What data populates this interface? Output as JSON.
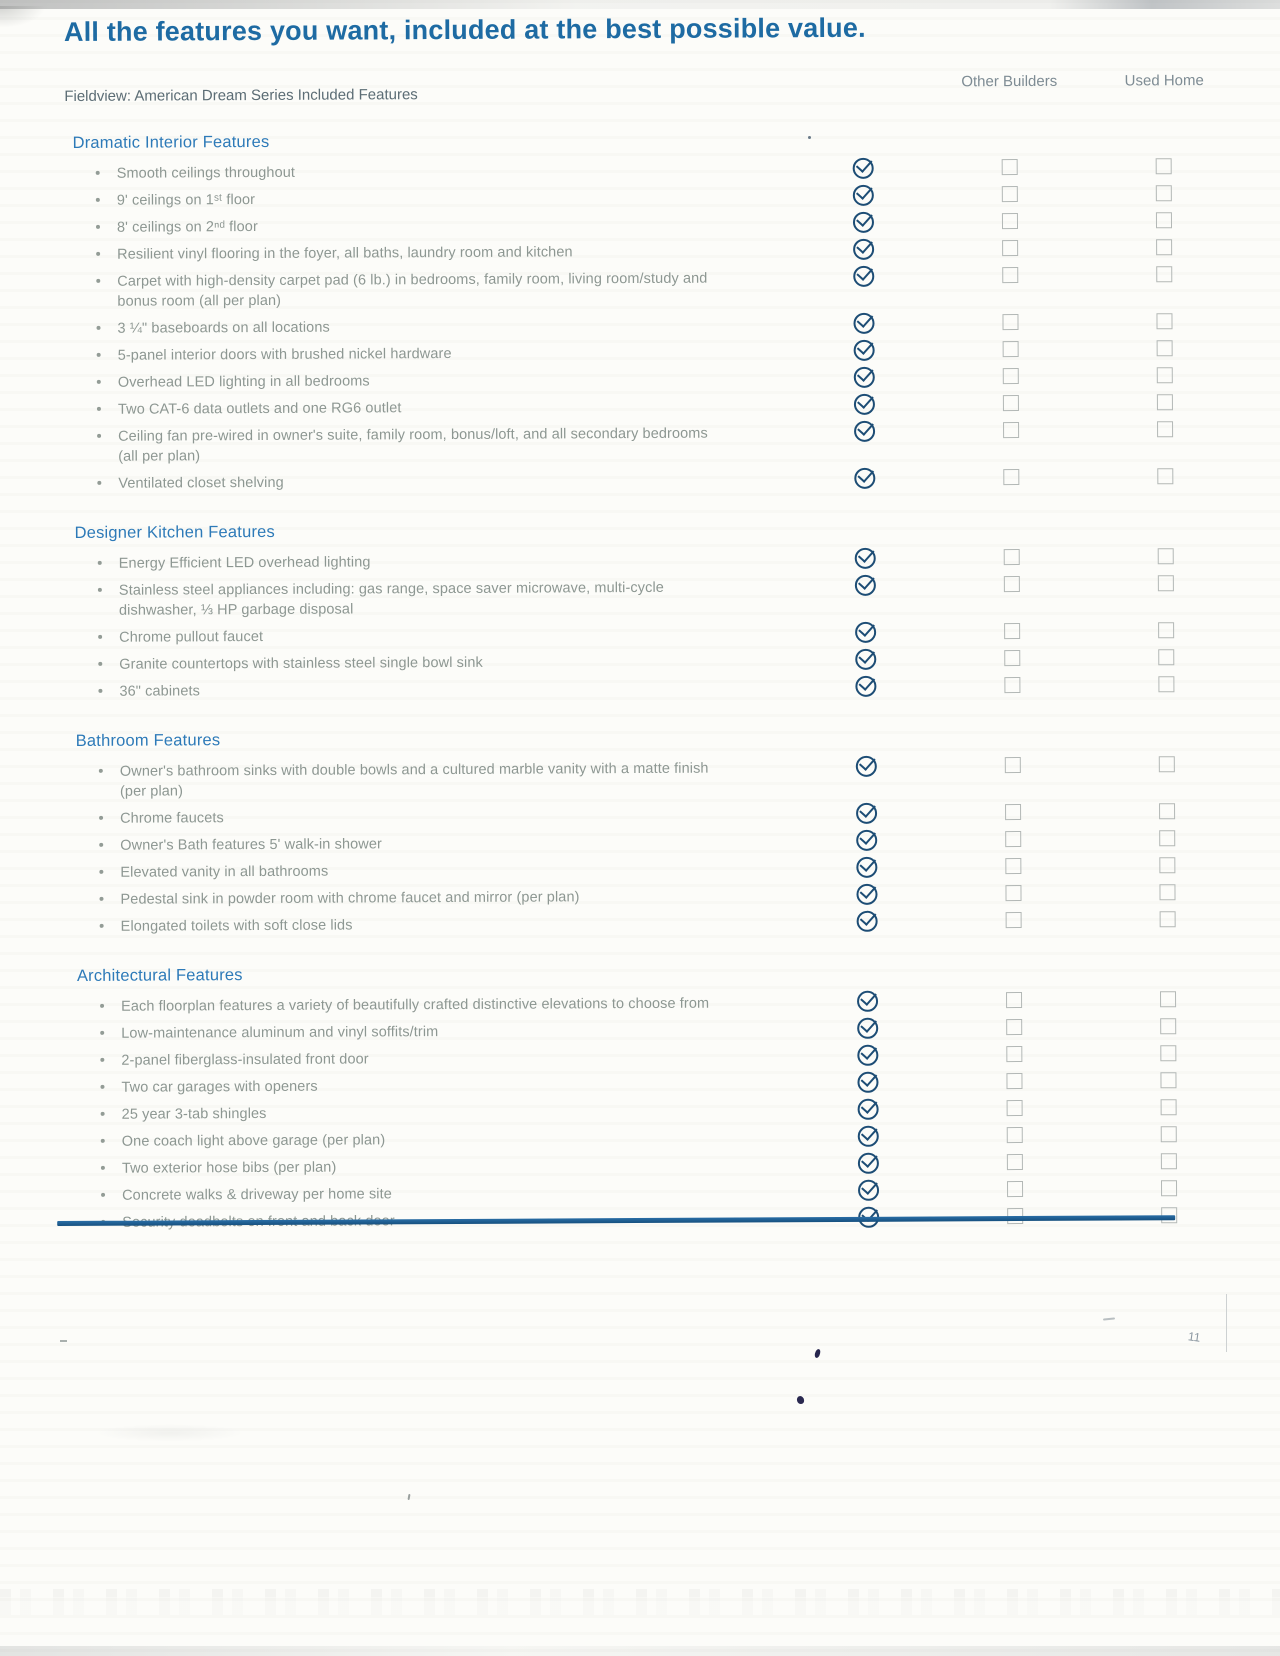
{
  "page": {
    "title": "All the features you want, included at the best possible value.",
    "subtitle": "Fieldview: American Dream Series Included Features",
    "columns": [
      "Other Builders",
      "Used Home"
    ],
    "page_number": "11"
  },
  "colors": {
    "title_blue": "#1e6ba3",
    "section_blue": "#2d7ab8",
    "check_navy": "#1d4d75",
    "divider_blue": "#16507f",
    "body_text_gray": "#8d9792",
    "checkbox_border": "#b3b8b6"
  },
  "icons": {
    "included": "check-circle-icon",
    "not_included": "empty-checkbox"
  },
  "sections": [
    {
      "title": "Dramatic Interior Features",
      "items": [
        {
          "text": "Smooth ceilings throughout",
          "included": true,
          "other_builders": false,
          "used_home": false
        },
        {
          "text": "9' ceilings on 1ˢᵗ floor",
          "included": true,
          "other_builders": false,
          "used_home": false
        },
        {
          "text": "8' ceilings on 2ⁿᵈ floor",
          "included": true,
          "other_builders": false,
          "used_home": false
        },
        {
          "text": "Resilient vinyl flooring in the foyer, all baths, laundry room and kitchen",
          "included": true,
          "other_builders": false,
          "used_home": false
        },
        {
          "text": "Carpet with high-density carpet pad (6 lb.) in bedrooms, family room, living room/study and\nbonus room (all per plan)",
          "included": true,
          "other_builders": false,
          "used_home": false
        },
        {
          "text": "3 ¼\" baseboards on all locations",
          "included": true,
          "other_builders": false,
          "used_home": false
        },
        {
          "text": "5-panel interior doors with brushed nickel hardware",
          "included": true,
          "other_builders": false,
          "used_home": false
        },
        {
          "text": "Overhead LED lighting in all bedrooms",
          "included": true,
          "other_builders": false,
          "used_home": false
        },
        {
          "text": "Two CAT-6 data outlets and one RG6 outlet",
          "included": true,
          "other_builders": false,
          "used_home": false
        },
        {
          "text": "Ceiling fan pre-wired in owner's suite, family room, bonus/loft, and all secondary bedrooms\n(all per plan)",
          "included": true,
          "other_builders": false,
          "used_home": false
        },
        {
          "text": "Ventilated closet shelving",
          "included": true,
          "other_builders": false,
          "used_home": false
        }
      ]
    },
    {
      "title": "Designer Kitchen Features",
      "items": [
        {
          "text": "Energy Efficient LED overhead lighting",
          "included": true,
          "other_builders": false,
          "used_home": false
        },
        {
          "text": "Stainless steel appliances including: gas range, space saver microwave, multi-cycle\ndishwasher, ⅓ HP garbage disposal",
          "included": true,
          "other_builders": false,
          "used_home": false
        },
        {
          "text": "Chrome pullout faucet",
          "included": true,
          "other_builders": false,
          "used_home": false
        },
        {
          "text": "Granite countertops with stainless steel single bowl sink",
          "included": true,
          "other_builders": false,
          "used_home": false
        },
        {
          "text": "36\" cabinets",
          "included": true,
          "other_builders": false,
          "used_home": false
        }
      ]
    },
    {
      "title": "Bathroom Features",
      "items": [
        {
          "text": "Owner's bathroom sinks with double bowls and a cultured marble vanity with a matte finish\n(per plan)",
          "included": true,
          "other_builders": false,
          "used_home": false
        },
        {
          "text": "Chrome faucets",
          "included": true,
          "other_builders": false,
          "used_home": false
        },
        {
          "text": "Owner's Bath features 5' walk-in shower",
          "included": true,
          "other_builders": false,
          "used_home": false
        },
        {
          "text": "Elevated vanity in all bathrooms",
          "included": true,
          "other_builders": false,
          "used_home": false
        },
        {
          "text": "Pedestal sink in powder room with chrome faucet and mirror (per plan)",
          "included": true,
          "other_builders": false,
          "used_home": false
        },
        {
          "text": "Elongated toilets with soft close lids",
          "included": true,
          "other_builders": false,
          "used_home": false
        }
      ]
    },
    {
      "title": "Architectural Features",
      "items": [
        {
          "text": "Each floorplan features a variety of beautifully crafted distinctive elevations to choose from",
          "included": true,
          "other_builders": false,
          "used_home": false
        },
        {
          "text": "Low-maintenance aluminum and vinyl soffits/trim",
          "included": true,
          "other_builders": false,
          "used_home": false
        },
        {
          "text": "2-panel fiberglass-insulated front door",
          "included": true,
          "other_builders": false,
          "used_home": false
        },
        {
          "text": "Two car garages with openers",
          "included": true,
          "other_builders": false,
          "used_home": false
        },
        {
          "text": "25 year 3-tab shingles",
          "included": true,
          "other_builders": false,
          "used_home": false
        },
        {
          "text": "One coach light above garage (per plan)",
          "included": true,
          "other_builders": false,
          "used_home": false
        },
        {
          "text": "Two exterior hose bibs (per plan)",
          "included": true,
          "other_builders": false,
          "used_home": false
        },
        {
          "text": "Concrete walks & driveway per home site",
          "included": true,
          "other_builders": false,
          "used_home": false
        },
        {
          "text": "Security deadbolts on front and back door",
          "included": true,
          "other_builders": false,
          "used_home": false
        }
      ]
    }
  ]
}
